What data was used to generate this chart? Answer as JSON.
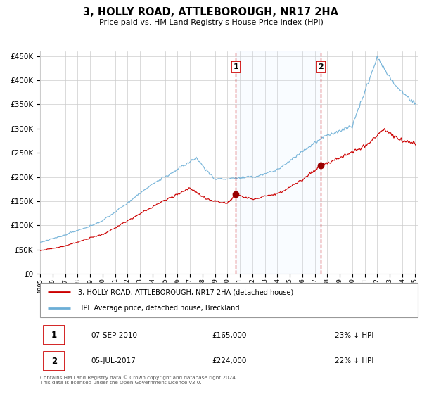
{
  "title": "3, HOLLY ROAD, ATTLEBOROUGH, NR17 2HA",
  "subtitle": "Price paid vs. HM Land Registry's House Price Index (HPI)",
  "legend_label_red": "3, HOLLY ROAD, ATTLEBOROUGH, NR17 2HA (detached house)",
  "legend_label_blue": "HPI: Average price, detached house, Breckland",
  "transaction1_date": "07-SEP-2010",
  "transaction1_price": 165000,
  "transaction1_pct": "23% ↓ HPI",
  "transaction2_date": "05-JUL-2017",
  "transaction2_price": 224000,
  "transaction2_pct": "22% ↓ HPI",
  "footer": "Contains HM Land Registry data © Crown copyright and database right 2024.\nThis data is licensed under the Open Government Licence v3.0.",
  "hpi_color": "#6baed6",
  "price_color": "#cc0000",
  "marker_color": "#990000",
  "vline_color": "#cc0000",
  "shade_color": "#ddeeff",
  "grid_color": "#cccccc",
  "bg_color": "#ffffff",
  "ylim_max": 460000,
  "ylim_min": 0,
  "t1_year": 2010.67,
  "t2_year": 2017.5
}
